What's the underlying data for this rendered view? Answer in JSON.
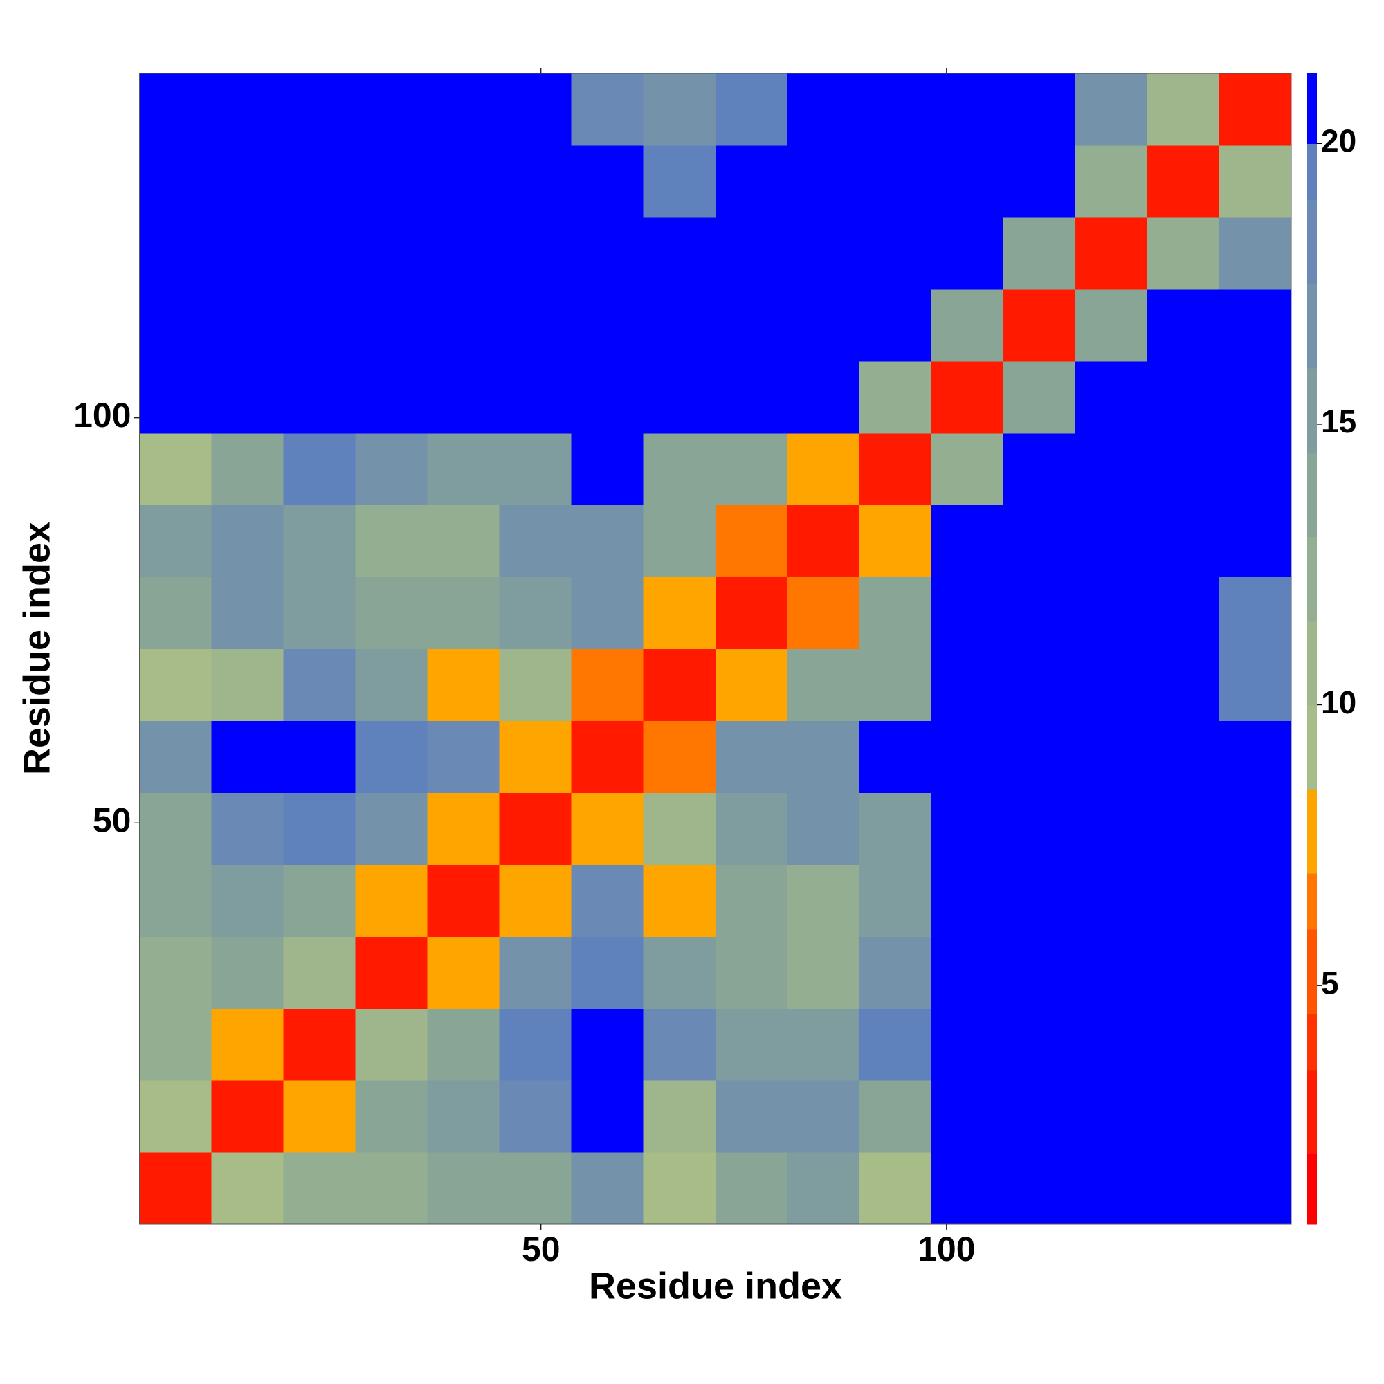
{
  "chart_data": {
    "type": "heatmap",
    "x_label": "Residue index",
    "y_label": "Residue index",
    "xlim": [
      0.5,
      142.5
    ],
    "ylim": [
      0.5,
      142.5
    ],
    "xticks": [
      50,
      100
    ],
    "yticks": [
      50,
      100
    ],
    "clim": [
      0.75,
      21.25
    ],
    "cticks": [
      5,
      10,
      15,
      20
    ],
    "levels": [
      0.75,
      2,
      3.5,
      4.5,
      6,
      7,
      8.5,
      10,
      11.5,
      13,
      14.5,
      16,
      17.5,
      19,
      20,
      21.25
    ],
    "colors": [
      "#ff0000",
      "#ff1a00",
      "#ff3300",
      "#ff5500",
      "#ff7700",
      "#ffa500",
      "#a8bc88",
      "#9fb68c",
      "#93ae90",
      "#88a596",
      "#7f9c9f",
      "#7493aa",
      "#6a8ab5",
      "#5f82bd",
      "#0000ff"
    ],
    "z": [
      [
        3,
        9,
        12,
        12,
        13,
        13,
        16,
        9,
        14,
        15,
        9,
        21,
        21,
        21,
        21,
        21
      ],
      [
        9,
        3,
        8,
        13,
        15,
        18,
        20,
        10,
        16,
        16,
        14,
        21,
        21,
        21,
        21,
        21
      ],
      [
        12,
        8,
        3,
        10,
        14,
        19,
        20,
        18,
        15,
        15,
        19,
        21,
        21,
        21,
        21,
        21
      ],
      [
        12,
        13,
        10,
        3,
        8,
        17,
        19,
        15,
        13,
        12,
        16,
        21,
        21,
        21,
        21,
        21
      ],
      [
        13,
        15,
        14,
        8,
        3,
        7,
        18,
        8,
        13,
        12,
        15,
        21,
        21,
        21,
        21,
        21
      ],
      [
        13,
        18,
        19,
        17,
        7,
        3,
        7,
        10,
        15,
        16,
        15,
        21,
        21,
        21,
        21,
        21
      ],
      [
        16,
        20,
        20,
        19,
        18,
        7,
        3,
        6,
        17,
        17,
        20,
        21,
        21,
        21,
        21,
        21
      ],
      [
        9,
        10,
        18,
        15,
        8,
        10,
        6,
        3,
        8,
        13,
        14,
        21,
        21,
        21,
        21,
        19
      ],
      [
        14,
        16,
        15,
        13,
        13,
        15,
        17,
        8,
        3,
        6,
        14,
        21,
        21,
        21,
        20,
        19
      ],
      [
        15,
        16,
        15,
        12,
        12,
        16,
        17,
        13,
        6,
        3,
        7,
        20,
        21,
        21,
        20,
        20
      ],
      [
        9,
        14,
        19,
        16,
        15,
        15,
        20,
        14,
        14,
        7,
        3,
        12,
        21,
        21,
        21,
        21
      ],
      [
        21,
        21,
        21,
        21,
        21,
        21,
        21,
        21,
        21,
        20,
        12,
        3,
        13,
        21,
        21,
        21
      ],
      [
        21,
        21,
        21,
        21,
        21,
        21,
        21,
        21,
        21,
        21,
        21,
        13,
        3,
        13,
        21,
        21
      ],
      [
        21,
        21,
        21,
        21,
        21,
        21,
        21,
        21,
        21,
        21,
        21,
        21,
        13,
        3,
        12,
        16
      ],
      [
        21,
        21,
        21,
        21,
        21,
        21,
        20,
        19,
        20,
        21,
        21,
        21,
        21,
        12,
        3,
        11
      ],
      [
        21,
        21,
        21,
        21,
        21,
        21,
        18,
        17,
        19,
        21,
        21,
        21,
        21,
        16,
        11,
        3
      ]
    ]
  }
}
